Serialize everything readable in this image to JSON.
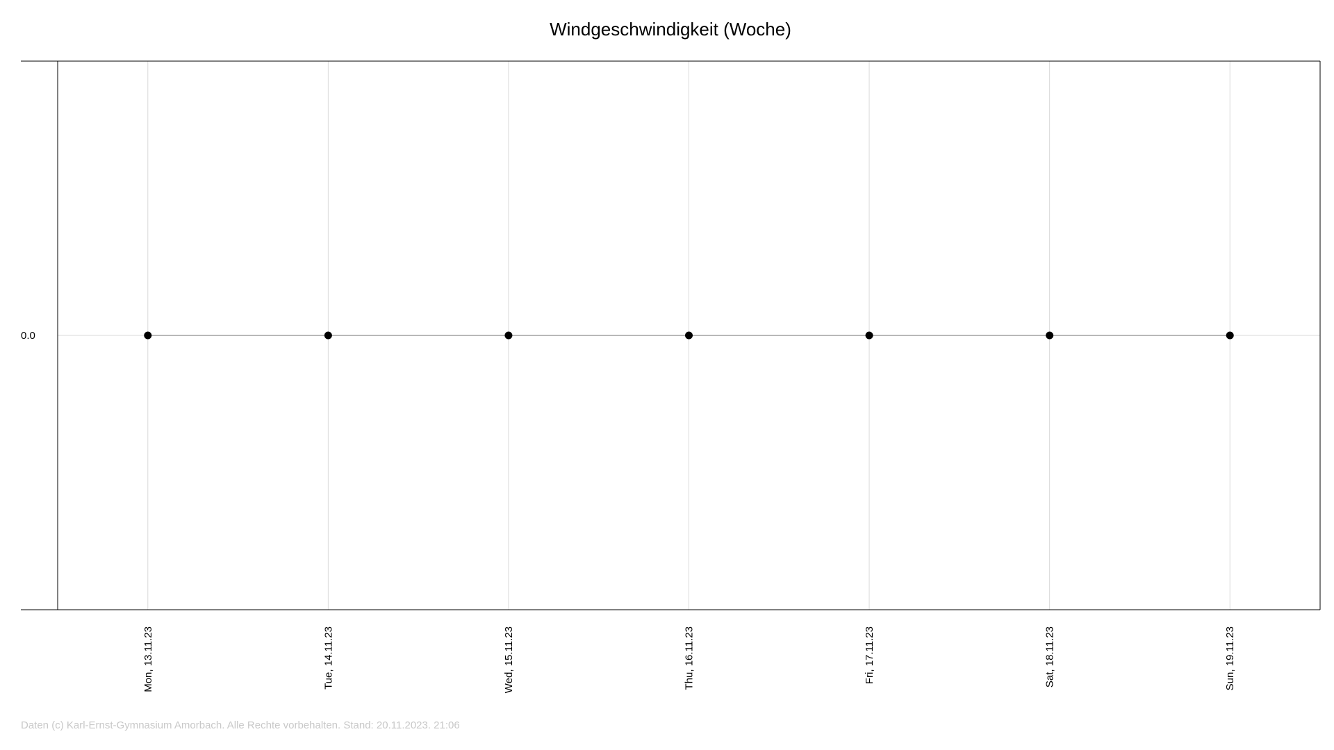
{
  "chart_data": {
    "type": "line",
    "title": "Windgeschwindigkeit (Woche)",
    "xlabel": "",
    "ylabel": "",
    "categories": [
      "Mon, 13.11.23",
      "Tue, 14.11.23",
      "Wed, 15.11.23",
      "Thu, 16.11.23",
      "Fri, 17.11.23",
      "Sat, 18.11.23",
      "Sun, 19.11.23"
    ],
    "series": [
      {
        "values": [
          0.0,
          0.0,
          0.0,
          0.0,
          0.0,
          0.0,
          0.0
        ]
      }
    ],
    "y_ticks": [
      {
        "value": 0.0,
        "label": "0.0"
      }
    ],
    "ylim": [
      -1,
      1
    ],
    "grid": true,
    "legend": "none"
  },
  "footer": {
    "text": "Daten (c) Karl-Ernst-Gymnasium Amorbach. Alle Rechte vorbehalten. Stand: 20.11.2023. 21:06"
  },
  "colors": {
    "line": "#a0a0a0",
    "marker": "#000000",
    "grid": "#d9d9d9",
    "axis": "#000000",
    "footer": "#c8c8c8"
  }
}
